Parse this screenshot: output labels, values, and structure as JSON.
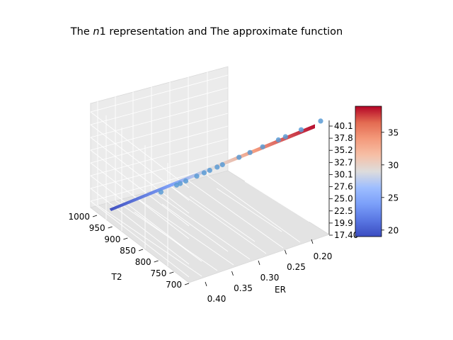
{
  "chart_data": {
    "type": "scatter",
    "subtype": "3d-scatter-with-surface",
    "title": {
      "prefix": "The ",
      "italic": "n",
      "suffix": "1 representation and The approximate function"
    },
    "axes": {
      "x": {
        "label": "T2",
        "lim": [
          680,
          1030
        ],
        "ticks": [
          "1000",
          "950",
          "900",
          "850",
          "800",
          "750",
          "700"
        ]
      },
      "y": {
        "label": "ER",
        "lim": [
          0.18,
          0.42
        ],
        "ticks": [
          "0.20",
          "0.25",
          "0.30",
          "0.35",
          "0.40"
        ]
      },
      "z": {
        "label": "",
        "lim": [
          17.4,
          40.1
        ],
        "ticks": [
          "40.1",
          "37.8",
          "35.2",
          "32.7",
          "30.1",
          "27.6",
          "25.0",
          "22.5",
          "19.9",
          "17.40"
        ]
      }
    },
    "grid": true,
    "colorbar": {
      "colormap": "coolwarm",
      "range": [
        19,
        39
      ],
      "ticks": [
        "35",
        "30",
        "25",
        "20"
      ]
    },
    "scatter_color": "#5b9bd5",
    "surface_line_color_low": "#3b4cc0",
    "surface_line_color_high": "#b40426",
    "series": [
      {
        "kind": "scatter",
        "points": [
          {
            "T2": 990,
            "ER": 0.4,
            "value": 19.9
          },
          {
            "T2": 960,
            "ER": 0.38,
            "value": 21.6
          },
          {
            "T2": 940,
            "ER": 0.37,
            "value": 22.6
          },
          {
            "T2": 935,
            "ER": 0.38,
            "value": 22.0
          },
          {
            "T2": 915,
            "ER": 0.36,
            "value": 23.8
          },
          {
            "T2": 900,
            "ER": 0.35,
            "value": 24.6
          },
          {
            "T2": 885,
            "ER": 0.34,
            "value": 25.2
          },
          {
            "T2": 870,
            "ER": 0.33,
            "value": 26.6
          },
          {
            "T2": 860,
            "ER": 0.33,
            "value": 26.0
          },
          {
            "T2": 840,
            "ER": 0.31,
            "value": 28.4
          },
          {
            "T2": 820,
            "ER": 0.3,
            "value": 29.6
          },
          {
            "T2": 800,
            "ER": 0.29,
            "value": 31.0
          },
          {
            "T2": 780,
            "ER": 0.27,
            "value": 33.5
          },
          {
            "T2": 770,
            "ER": 0.27,
            "value": 32.7
          },
          {
            "T2": 750,
            "ER": 0.25,
            "value": 35.2
          },
          {
            "T2": 720,
            "ER": 0.22,
            "value": 37.3
          }
        ]
      },
      {
        "kind": "surface",
        "from": {
          "T2": 1000,
          "ER": 0.4,
          "value": 18.5
        },
        "to": {
          "T2": 700,
          "ER": 0.2,
          "value": 39.0
        }
      }
    ]
  }
}
